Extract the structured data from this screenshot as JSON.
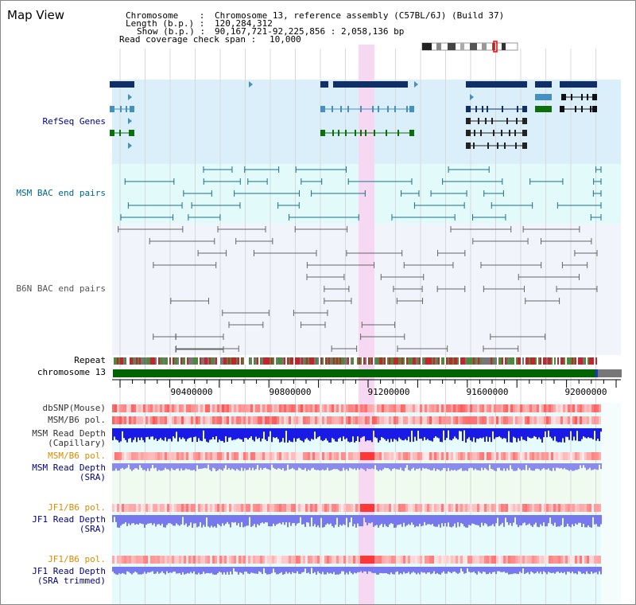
{
  "window": {
    "title": "Map View"
  },
  "header": {
    "chromosome_label": "Chromosome    :",
    "chromosome_value": "Chromosome 13, reference assembly (C57BL/6J) (Build 37)",
    "length_label": "Length (b.p.) :",
    "length_value": "120,284,312",
    "show_label": "Show (b.p.) :",
    "show_value": "90,167,721-92,225,856 : 2,058,136 bp",
    "coverage_label": "Read coverage check span :",
    "coverage_value": "10,000"
  },
  "tracks": {
    "refseq": "RefSeq Genes",
    "msm_bac": "MSM BAC end pairs",
    "b6n_bac": "B6N BAC end pairs",
    "repeat": "Repeat",
    "chromosome": "chromosome 13",
    "dbsnp": "dbSNP(Mouse)",
    "msm_b6_pol_1": "MSM/B6 pol.",
    "msm_read_depth_cap_1": "MSM Read Depth",
    "msm_read_depth_cap_2": "(Capillary)",
    "msm_b6_pol_2": "MSM/B6 pol.",
    "msm_read_depth_sra_1": "MSM Read Depth",
    "msm_read_depth_sra_2": "(SRA)",
    "jf1_b6_pol_1": "JF1/B6 pol.",
    "jf1_read_depth_sra_1": "JF1 Read Depth",
    "jf1_read_depth_sra_2": "(SRA)",
    "jf1_b6_pol_2": "JF1/B6 pol.",
    "jf1_read_depth_trim_1": "JF1 Read Depth",
    "jf1_read_depth_trim_2": "(SRA trimmed)"
  },
  "axis": {
    "ticks": [
      "90400000",
      "90800000",
      "91200000",
      "91600000",
      "92000000"
    ]
  },
  "colors": {
    "refseq_bg": "#dbeffa",
    "msm_bg": "#e2fbfa",
    "b6n_bg": "#f2f4fc",
    "highlight": "#f6d8f2",
    "gene_dark": "#0f2f66",
    "gene_mid": "#4590bc",
    "gene_green": "#0d6e0c",
    "chromosome": "#006400",
    "label_blue": "#00008b",
    "label_teal": "#00688b",
    "label_orange": "#e08a00"
  }
}
